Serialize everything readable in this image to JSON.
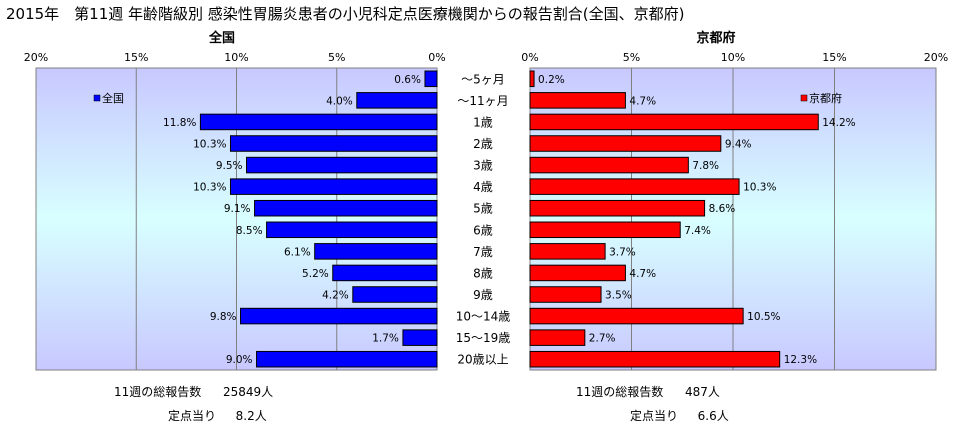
{
  "title": "2015年　第11週 年齢階級別 感染性胃腸炎患者の小児科定点医療機関からの報告割合(全国、京都府)",
  "chart_data": [
    {
      "type": "bar",
      "title": "全国",
      "legend": "全国",
      "legend_placement": "top-left",
      "orientation": "horizontal-reversed",
      "xlim": [
        0,
        20
      ],
      "x_ticks": [
        "20%",
        "15%",
        "10%",
        "5%",
        "0%"
      ],
      "color": "#0000ff",
      "grid": true,
      "categories": [
        "～5ヶ月",
        "～11ヶ月",
        "1歳",
        "2歳",
        "3歳",
        "4歳",
        "5歳",
        "6歳",
        "7歳",
        "8歳",
        "9歳",
        "10～14歳",
        "15～19歳",
        "20歳以上"
      ],
      "values": [
        0.6,
        4.0,
        11.8,
        10.3,
        9.5,
        10.3,
        9.1,
        8.5,
        6.1,
        5.2,
        4.2,
        9.8,
        1.7,
        9.0
      ],
      "labels": [
        "0.6%",
        "4.0%",
        "11.8%",
        "10.3%",
        "9.5%",
        "10.3%",
        "9.1%",
        "8.5%",
        "6.1%",
        "5.2%",
        "4.2%",
        "9.8%",
        "1.7%",
        "9.0%"
      ]
    },
    {
      "type": "bar",
      "title": "京都府",
      "legend": "京都府",
      "legend_placement": "top-right",
      "orientation": "horizontal",
      "xlim": [
        0,
        20
      ],
      "x_ticks": [
        "0%",
        "5%",
        "10%",
        "15%",
        "20%"
      ],
      "color": "#ff0000",
      "grid": true,
      "categories": [
        "～5ヶ月",
        "～11ヶ月",
        "1歳",
        "2歳",
        "3歳",
        "4歳",
        "5歳",
        "6歳",
        "7歳",
        "8歳",
        "9歳",
        "10～14歳",
        "15～19歳",
        "20歳以上"
      ],
      "values": [
        0.2,
        4.7,
        14.2,
        9.4,
        7.8,
        10.3,
        8.6,
        7.4,
        3.7,
        4.7,
        3.5,
        10.5,
        2.7,
        12.3
      ],
      "labels": [
        "0.2%",
        "4.7%",
        "14.2%",
        "9.4%",
        "7.8%",
        "10.3%",
        "8.6%",
        "7.4%",
        "3.7%",
        "4.7%",
        "3.5%",
        "10.5%",
        "2.7%",
        "12.3%"
      ]
    }
  ],
  "summary": {
    "national_total_label": "11週の総報告数",
    "national_total_value": "25849人",
    "national_per_label": "定点当り",
    "national_per_value": "8.2人",
    "kyoto_total_label": "11週の総報告数",
    "kyoto_total_value": "487人",
    "kyoto_per_label": "定点当り",
    "kyoto_per_value": "6.6人"
  }
}
